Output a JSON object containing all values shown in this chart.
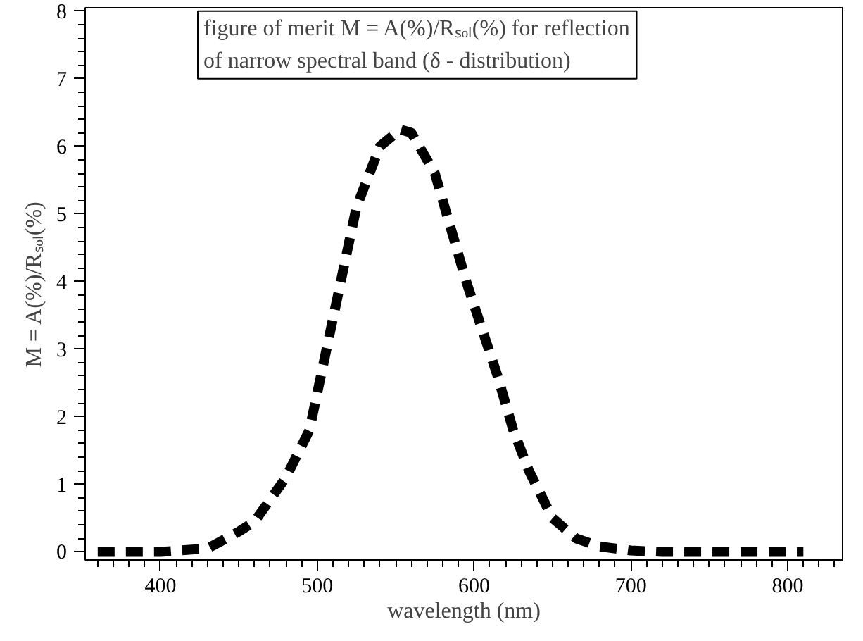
{
  "chart_data": {
    "type": "line",
    "xlabel": "wavelength (nm)",
    "ylabel": "M = A(%)/Rₛₒₗ(%)",
    "annotations": [
      "figure of merit M = A(%)/Rₛₒₗ(%) for reflection\nof narrow spectral band (δ - distribution)"
    ],
    "x": [
      360,
      400,
      430,
      450,
      460,
      480,
      495,
      505,
      515,
      525,
      540,
      553,
      560,
      575,
      585,
      595,
      605,
      615,
      625,
      635,
      650,
      665,
      680,
      700,
      720,
      750,
      780,
      810
    ],
    "series": [
      {
        "color": "#000000",
        "values": [
          0,
          0,
          0.05,
          0.3,
          0.45,
          1.1,
          1.8,
          2.9,
          4.0,
          5.1,
          6.0,
          6.25,
          6.2,
          5.6,
          4.8,
          4.0,
          3.3,
          2.6,
          1.8,
          1.2,
          0.5,
          0.2,
          0.08,
          0.02,
          0,
          0,
          0,
          0
        ]
      }
    ],
    "xlim": [
      352,
      835
    ],
    "ylim": [
      -0.12,
      8.05
    ],
    "xticks": [
      400,
      500,
      600,
      700,
      800
    ],
    "yticks": [
      0,
      1,
      2,
      3,
      4,
      5,
      6,
      7,
      8
    ],
    "grid": false,
    "marker": "none",
    "line_style": "dashed"
  }
}
